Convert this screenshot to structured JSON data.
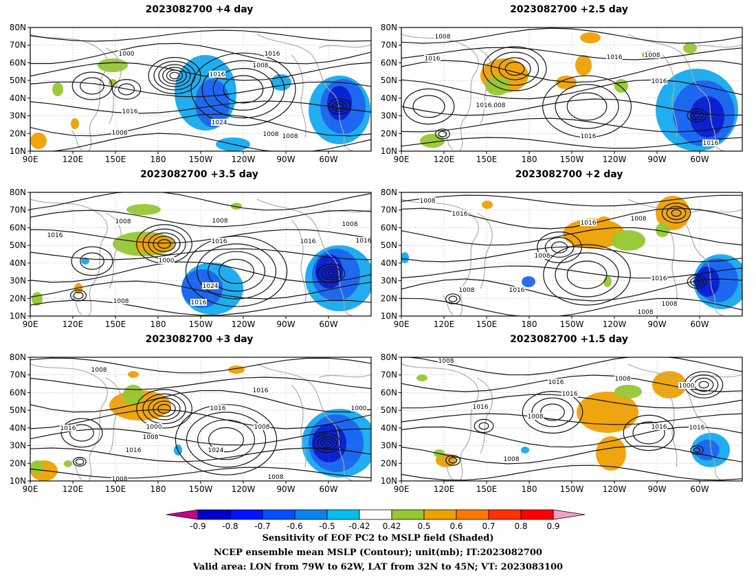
{
  "panels": [
    {
      "title": "2023082700  +4 day",
      "isobars": [
        "1000",
        "1016",
        "1008",
        "1016",
        "1008",
        "1016",
        "1024",
        "1008",
        "1008",
        "1008"
      ]
    },
    {
      "title": "2023082700  +2.5 day",
      "isobars": [
        "1008",
        "1016",
        "1016",
        "1008",
        "1008",
        "1016",
        "1016",
        "1016",
        "1016"
      ]
    },
    {
      "title": "2023082700  +3.5 day",
      "isobars": [
        "1008",
        "1016",
        "1000",
        "1008",
        "1016",
        "1016",
        "1024",
        "1016",
        "1008",
        "1008",
        "1016"
      ]
    },
    {
      "title": "2023082700  +2 day",
      "isobars": [
        "1008",
        "1016",
        "1016",
        "1008",
        "1008",
        "1016",
        "1008",
        "1016",
        "1008",
        "1008"
      ]
    },
    {
      "title": "2023082700  +3 day",
      "isobars": [
        "1008",
        "1016",
        "1000",
        "1008",
        "1016",
        "1016",
        "1024",
        "1008",
        "1016",
        "1000",
        "1008",
        "1008"
      ]
    },
    {
      "title": "2023082700  +1.5 day",
      "isobars": [
        "1008",
        "1016",
        "1016",
        "1008",
        "1008",
        "1016",
        "1016",
        "1000",
        "1016",
        "1008"
      ]
    }
  ],
  "lat_labels": [
    "80N",
    "70N",
    "60N",
    "50N",
    "40N",
    "30N",
    "20N",
    "10N"
  ],
  "lon_labels": [
    "90E",
    "120E",
    "150E",
    "180",
    "150W",
    "120W",
    "90W",
    "60W"
  ],
  "colorbar": {
    "ticks": [
      "-0.9",
      "-0.8",
      "-0.7",
      "-0.6",
      "-0.5",
      "-0.42",
      "0.42",
      "0.5",
      "0.6",
      "0.7",
      "0.8",
      "0.9"
    ],
    "colors": [
      "#c8008c",
      "#0000c8",
      "#0014ff",
      "#0050ff",
      "#0a82f0",
      "#00bef0",
      "#ffffff",
      "#96c832",
      "#f0a000",
      "#ff7800",
      "#ff3200",
      "#ff0000",
      "#f5a0c8"
    ]
  },
  "caption": {
    "line1": "Sensitivity of EOF PC2 to MSLP field (Shaded)",
    "line2": "NCEP ensemble mean MSLP (Contour); unit(mb); IT:2023082700",
    "line3": "Valid area: LON from 79W to 62W, LAT from 32N to 45N; VT: 2023083100"
  },
  "shading": {
    "neg_strong": "#0a1ed2",
    "neg_mid": "#1e64f0",
    "neg_weak": "#14aaf0",
    "pos_green": "#96c832",
    "pos_orange": "#f0a000",
    "pos_red": "#ff7800"
  }
}
